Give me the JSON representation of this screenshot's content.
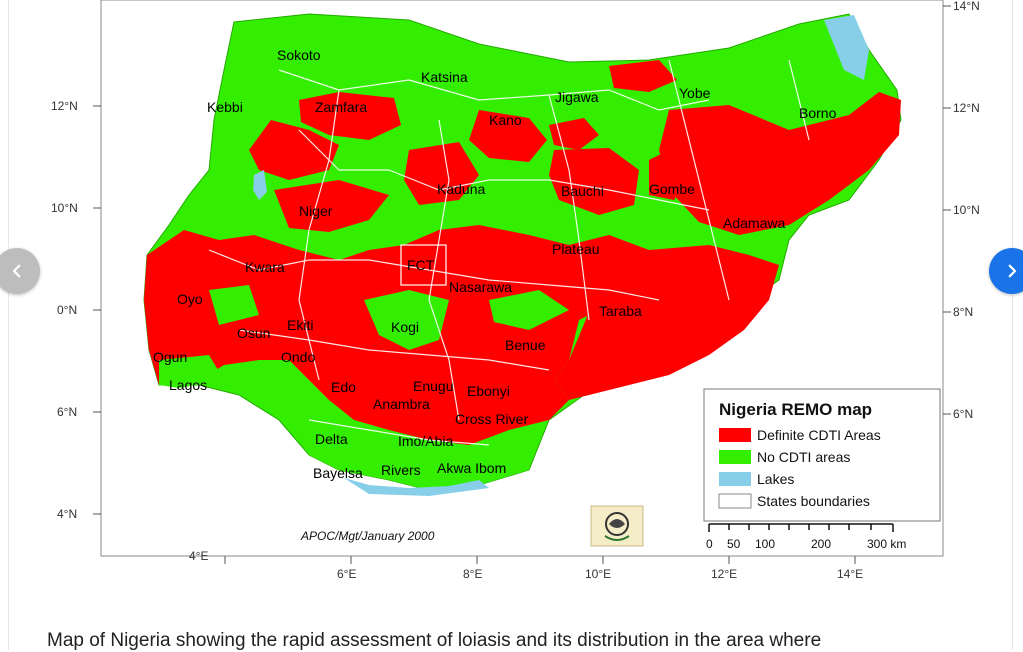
{
  "map": {
    "legend_title": "Nigeria REMO map",
    "legend_items": [
      {
        "label": "Definite CDTI Areas",
        "color": "#ff0000"
      },
      {
        "label": "No CDTI areas",
        "color": "#33ee00"
      },
      {
        "label": "Lakes",
        "color": "#87cfe8"
      },
      {
        "label": "States boundaries",
        "color": "#ffffff"
      }
    ],
    "credit": "APOC/Mgt/January 2000",
    "scale": {
      "ticks": [
        "0",
        "50",
        "100",
        "200",
        "300 km"
      ]
    },
    "lat_labels_left": [
      "12°N",
      "10°N",
      "0°N",
      "6°N",
      "4°N"
    ],
    "lat_labels_right": [
      "14°N",
      "12°N",
      "10°N",
      "8°N",
      "6°N"
    ],
    "lon_labels": [
      "4°E",
      "6°E",
      "8°E",
      "10°E",
      "12°E",
      "14°E"
    ],
    "states": [
      "Sokoto",
      "Katsina",
      "Kebbi",
      "Zamfara",
      "Jigawa",
      "Yobe",
      "Borno",
      "Kano",
      "Kaduna",
      "Bauchi",
      "Gombe",
      "Niger",
      "Adamawa",
      "Plateau",
      "Kwara",
      "FCT",
      "Nasarawa",
      "Oyo",
      "Taraba",
      "Osun",
      "Ekiti",
      "Kogi",
      "Ondo",
      "Benue",
      "Ogun",
      "Lagos",
      "Edo",
      "Enugu",
      "Ebonyi",
      "Anambra",
      "Cross River",
      "Delta",
      "Imo/Abia",
      "Bayelsa",
      "Rivers",
      "Akwa Ibom"
    ],
    "colors": {
      "cdti": "#ff0000",
      "no_cdti": "#33ee00",
      "lake": "#87cfe8"
    }
  },
  "navigation": {
    "prev_icon": "chevron-left-icon",
    "next_icon": "chevron-right-icon"
  },
  "caption": "Map of Nigeria showing the rapid assessment of loiasis and its distribution in the area where"
}
